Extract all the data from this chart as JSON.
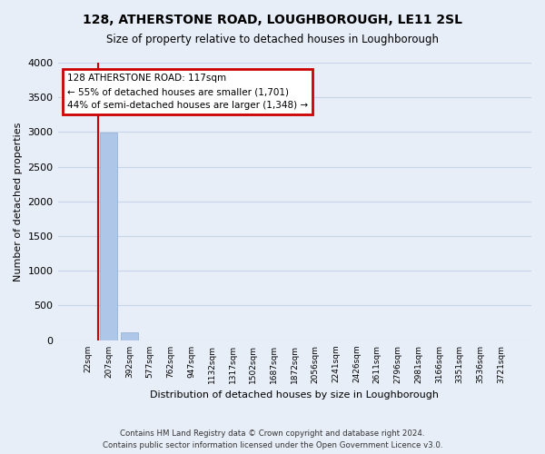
{
  "title": "128, ATHERSTONE ROAD, LOUGHBOROUGH, LE11 2SL",
  "subtitle": "Size of property relative to detached houses in Loughborough",
  "xlabel": "Distribution of detached houses by size in Loughborough",
  "ylabel": "Number of detached properties",
  "footnote1": "Contains HM Land Registry data © Crown copyright and database right 2024.",
  "footnote2": "Contains public sector information licensed under the Open Government Licence v3.0.",
  "categories": [
    "22sqm",
    "207sqm",
    "392sqm",
    "577sqm",
    "762sqm",
    "947sqm",
    "1132sqm",
    "1317sqm",
    "1502sqm",
    "1687sqm",
    "1872sqm",
    "2056sqm",
    "2241sqm",
    "2426sqm",
    "2611sqm",
    "2796sqm",
    "2981sqm",
    "3166sqm",
    "3351sqm",
    "3536sqm",
    "3721sqm"
  ],
  "values": [
    0,
    2990,
    115,
    0,
    0,
    0,
    0,
    0,
    0,
    0,
    0,
    0,
    0,
    0,
    0,
    0,
    0,
    0,
    0,
    0,
    0
  ],
  "bar_color": "#aec6e8",
  "property_label": "128 ATHERSTONE ROAD: 117sqm",
  "annotation_line1": "← 55% of detached houses are smaller (1,701)",
  "annotation_line2": "44% of semi-detached houses are larger (1,348) →",
  "annotation_box_color": "#cc0000",
  "annotation_bg": "#ffffff",
  "ylim": [
    0,
    4000
  ],
  "yticks": [
    0,
    500,
    1000,
    1500,
    2000,
    2500,
    3000,
    3500,
    4000
  ],
  "grid_color": "#c8d4e8",
  "bg_color": "#e8eef8",
  "bar_width": 0.85
}
